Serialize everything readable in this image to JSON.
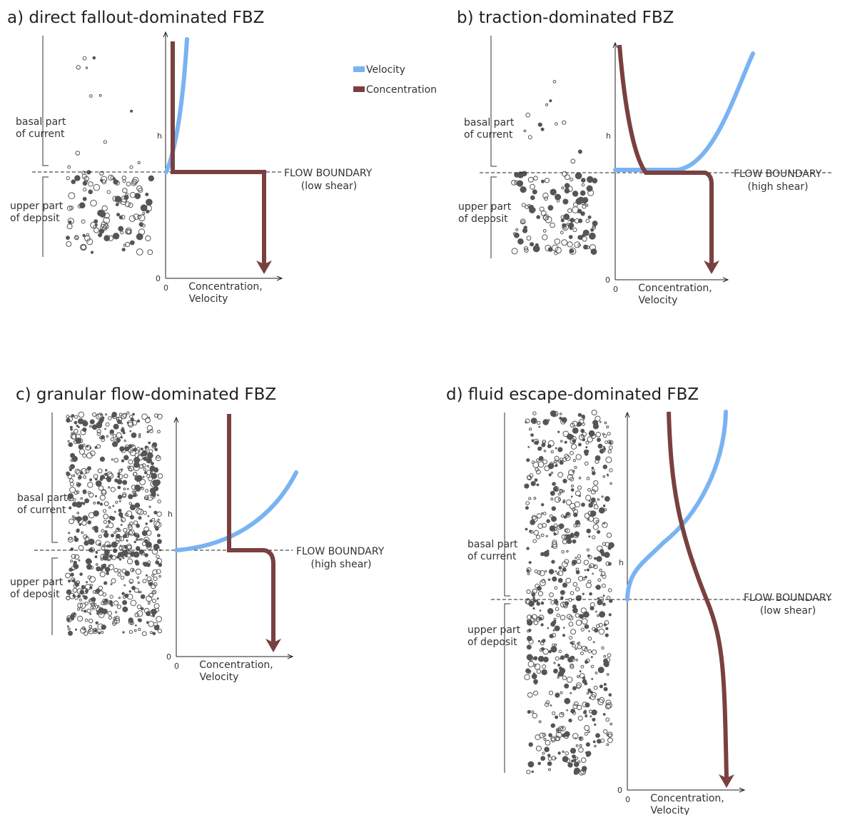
{
  "legend": {
    "velocity": "Velocity",
    "concentration": "Concentration"
  },
  "panels": [
    {
      "title": "a) direct fallout-dominated FBZ",
      "basal": [
        "basal part",
        "of current"
      ],
      "deposit": [
        "upper part",
        "of deposit"
      ],
      "boundary": "FLOW BOUNDARY",
      "shear": "(low shear)",
      "h": "h",
      "zero_y": "0",
      "zero_x": "0",
      "x_label": [
        "Concentration,",
        "Velocity"
      ]
    },
    {
      "title": "b) traction-dominated FBZ",
      "basal": [
        "basal part",
        "of current"
      ],
      "deposit": [
        "upper part",
        "of deposit"
      ],
      "boundary": "FLOW BOUNDARY",
      "shear": "(high shear)",
      "h": "h",
      "zero_y": "0",
      "zero_x": "0",
      "x_label": [
        "Concentration,",
        "Velocity"
      ]
    },
    {
      "title": "c) granular flow-dominated FBZ",
      "basal": [
        "basal part",
        "of current"
      ],
      "deposit": [
        "upper part",
        "of deposit"
      ],
      "boundary": "FLOW BOUNDARY",
      "shear": "(high shear)",
      "h": "h",
      "zero_y": "0",
      "zero_x": "0",
      "x_label": [
        "Concentration,",
        "Velocity"
      ]
    },
    {
      "title": "d) fluid escape-dominated FBZ",
      "basal": [
        "basal part",
        "of current"
      ],
      "deposit": [
        "upper part",
        "of deposit"
      ],
      "boundary": "FLOW BOUNDARY",
      "shear": "(low shear)",
      "h": "h",
      "zero_y": "0",
      "zero_x": "0",
      "x_label": [
        "Concentration,",
        "Velocity"
      ]
    }
  ]
}
